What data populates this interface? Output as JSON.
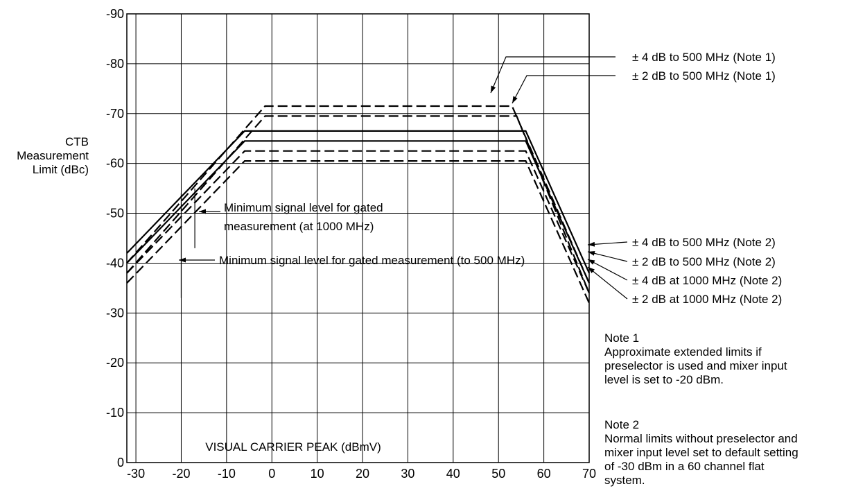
{
  "chart_data": {
    "type": "line",
    "title": "",
    "xlabel": "VISUAL CARRIER PEAK (dBmV)",
    "ylabel_lines": [
      "CTB",
      "Measurement",
      "Limit (dBc)"
    ],
    "xlim": [
      -32,
      70
    ],
    "ylim": [
      0,
      -90
    ],
    "x_ticks": [
      -30,
      -20,
      -10,
      0,
      10,
      20,
      30,
      40,
      50,
      60,
      70
    ],
    "y_ticks": [
      -90,
      -80,
      -70,
      -60,
      -50,
      -40,
      -30,
      -20,
      -10,
      0
    ],
    "grid": true,
    "series": [
      {
        "style": "dashed",
        "x": [
          -32,
          -1.5,
          53,
          70
        ],
        "y": [
          -40,
          -71.5,
          -71.5,
          -36
        ]
      },
      {
        "style": "dashed",
        "x": [
          -32,
          -1.5,
          54,
          70
        ],
        "y": [
          -38,
          -69.5,
          -69.5,
          -34
        ]
      },
      {
        "style": "solid",
        "x": [
          -32,
          -6,
          56,
          70
        ],
        "y": [
          -42,
          -66.5,
          -66.5,
          -38
        ]
      },
      {
        "style": "solid",
        "x": [
          -32,
          -6,
          56,
          70
        ],
        "y": [
          -40,
          -64.5,
          -64.5,
          -36
        ]
      },
      {
        "style": "dashed",
        "x": [
          -32,
          -6,
          56,
          70
        ],
        "y": [
          -38,
          -62.5,
          -62.5,
          -34
        ]
      },
      {
        "style": "dashed",
        "x": [
          -32,
          -6,
          56,
          70
        ],
        "y": [
          -36,
          -60.5,
          -60.5,
          -32
        ]
      }
    ],
    "markers": [
      {
        "x": -20,
        "y_from": -54,
        "y_to": -33
      },
      {
        "x": -17,
        "y_from": -55,
        "y_to": -43
      }
    ],
    "annotations": {
      "right_top": [
        "± 4 dB to 500 MHz (Note 1)",
        "± 2 dB to 500 MHz (Note 1)"
      ],
      "right_bottom": [
        "± 4 dB to 500 MHz (Note 2)",
        "± 2 dB to 500 MHz (Note 2)",
        "± 4 dB at 1000 MHz (Note 2)",
        "± 2 dB at 1000 MHz (Note 2)"
      ],
      "gated_1000": [
        "Minimum signal level for gated",
        "measurement (at 1000 MHz)"
      ],
      "gated_500": "Minimum signal level for gated measurement (to 500 MHz)"
    }
  },
  "notes": {
    "note1_title": "Note 1",
    "note1_lines": [
      "Approximate extended limits if",
      "preselector is used and mixer input",
      "level is set to -20 dBm."
    ],
    "note2_title": "Note 2",
    "note2_lines": [
      "Normal limits without preselector and",
      "mixer input level set to default setting",
      "of -30 dBm in a 60 channel flat",
      "system."
    ]
  }
}
